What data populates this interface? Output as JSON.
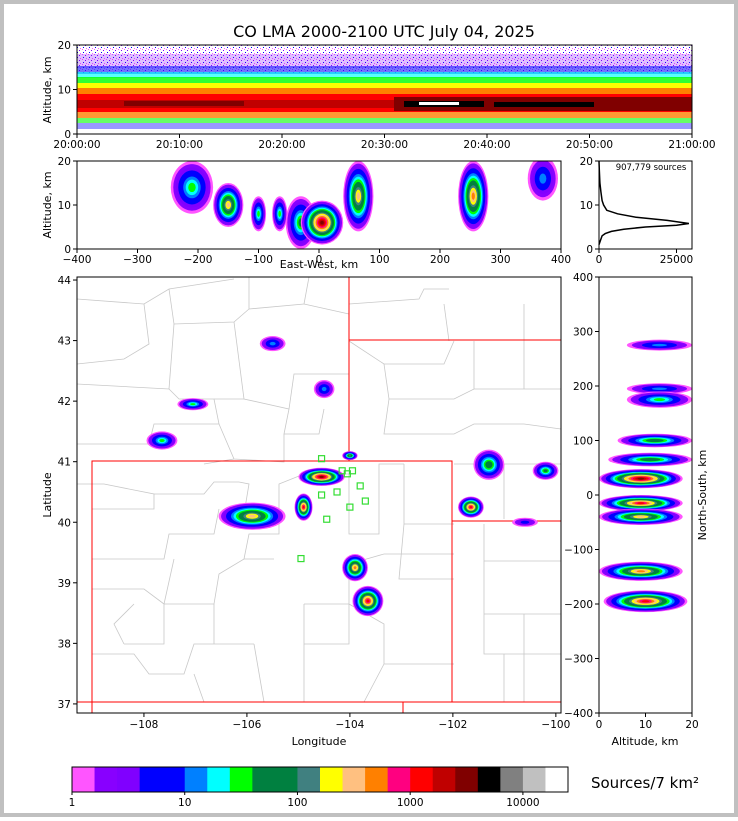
{
  "title": "CO LMA 2000-2100 UTC July 04, 2025",
  "colors": {
    "border": "#c0c0c0",
    "state_line": "#ff0000",
    "county_line": "#c8c8c8",
    "station": "#33dd33"
  },
  "chart_data": [
    {
      "id": "alt_time",
      "type": "heatmap",
      "ylabel": "Altitude, km",
      "xlim": [
        "20:00:00",
        "21:00:00"
      ],
      "ylim": [
        0,
        20
      ],
      "x_ticks": [
        "20:00:00",
        "20:10:00",
        "20:20:00",
        "20:30:00",
        "20:40:00",
        "20:50:00",
        "21:00:00"
      ],
      "y_ticks": [
        "0",
        "10",
        "20"
      ],
      "dense_band_km": [
        3,
        9
      ],
      "peak_altitude_km": 6
    },
    {
      "id": "alt_ew",
      "type": "heatmap",
      "xlabel": "East-West, km",
      "ylabel": "Altitude, km",
      "xlim": [
        -400,
        400
      ],
      "ylim": [
        0,
        20
      ],
      "x_ticks": [
        "−400",
        "−300",
        "−200",
        "−100",
        "0",
        "100",
        "200",
        "300",
        "400"
      ],
      "y_ticks": [
        "0",
        "10",
        "20"
      ],
      "cells": [
        {
          "x": -210,
          "y": 14,
          "w": 70,
          "h": 12,
          "n": 20
        },
        {
          "x": -150,
          "y": 10,
          "w": 50,
          "h": 10,
          "n": 200
        },
        {
          "x": -100,
          "y": 8,
          "w": 25,
          "h": 8,
          "n": 25
        },
        {
          "x": -65,
          "y": 8,
          "w": 25,
          "h": 8,
          "n": 30
        },
        {
          "x": -30,
          "y": 6,
          "w": 50,
          "h": 12,
          "n": 40
        },
        {
          "x": 5,
          "y": 6,
          "w": 70,
          "h": 10,
          "n": 3000
        },
        {
          "x": 65,
          "y": 12,
          "w": 50,
          "h": 16,
          "n": 300
        },
        {
          "x": 255,
          "y": 12,
          "w": 50,
          "h": 16,
          "n": 500
        },
        {
          "x": 370,
          "y": 16,
          "w": 50,
          "h": 10,
          "n": 10
        }
      ]
    },
    {
      "id": "alt_hist",
      "type": "line",
      "annotation": "907,779 sources",
      "xlim": [
        0,
        30000
      ],
      "ylim": [
        0,
        20
      ],
      "x_ticks": [
        "0",
        "25000"
      ],
      "y_ticks": [
        "0",
        "10",
        "20"
      ],
      "x": [
        0,
        500,
        1000,
        2000,
        4000,
        8000,
        15000,
        25000,
        29000,
        22000,
        12000,
        6000,
        2500,
        1500,
        1000,
        600,
        300,
        100,
        0
      ],
      "y": [
        1,
        2,
        3,
        3.5,
        4,
        4.5,
        5,
        5.4,
        5.8,
        6.5,
        7.2,
        8,
        8.8,
        10,
        11,
        13,
        15,
        18,
        20
      ]
    },
    {
      "id": "map",
      "type": "heatmap",
      "xlabel": "Longitude",
      "ylabel": "Latitude",
      "xlim": [
        -109.3,
        -99.9
      ],
      "ylim": [
        36.85,
        44.05
      ],
      "x_ticks": [
        "−108",
        "−106",
        "−104",
        "−102",
        "−100"
      ],
      "y_ticks": [
        "37",
        "38",
        "39",
        "40",
        "41",
        "42",
        "43",
        "44"
      ],
      "cells": [
        {
          "x": -105.9,
          "y": 40.1,
          "w": 1.3,
          "h": 0.45,
          "n": 300
        },
        {
          "x": -104.55,
          "y": 40.75,
          "w": 0.9,
          "h": 0.3,
          "n": 3000
        },
        {
          "x": -104.9,
          "y": 40.25,
          "w": 0.35,
          "h": 0.45,
          "n": 1000
        },
        {
          "x": -103.9,
          "y": 39.25,
          "w": 0.5,
          "h": 0.45,
          "n": 500
        },
        {
          "x": -103.65,
          "y": 38.7,
          "w": 0.6,
          "h": 0.5,
          "n": 1000
        },
        {
          "x": -107.05,
          "y": 41.95,
          "w": 0.6,
          "h": 0.2,
          "n": 30
        },
        {
          "x": -107.65,
          "y": 41.35,
          "w": 0.6,
          "h": 0.3,
          "n": 20
        },
        {
          "x": -105.5,
          "y": 42.95,
          "w": 0.5,
          "h": 0.25,
          "n": 8
        },
        {
          "x": -104.5,
          "y": 42.2,
          "w": 0.4,
          "h": 0.3,
          "n": 12
        },
        {
          "x": -101.3,
          "y": 40.95,
          "w": 0.6,
          "h": 0.5,
          "n": 60
        },
        {
          "x": -101.65,
          "y": 40.25,
          "w": 0.5,
          "h": 0.35,
          "n": 800
        },
        {
          "x": -100.2,
          "y": 40.85,
          "w": 0.5,
          "h": 0.3,
          "n": 50
        },
        {
          "x": -100.6,
          "y": 40.0,
          "w": 0.5,
          "h": 0.15,
          "n": 5
        },
        {
          "x": -104.0,
          "y": 41.1,
          "w": 0.3,
          "h": 0.15,
          "n": 100
        }
      ]
    },
    {
      "id": "ns_alt",
      "type": "heatmap",
      "xlabel": "Altitude, km",
      "ylabel": "North-South, km",
      "xlim": [
        0,
        20
      ],
      "ylim": [
        -400,
        400
      ],
      "x_ticks": [
        "0",
        "10",
        "20"
      ],
      "y_ticks": [
        "400",
        "300",
        "200",
        "100",
        "0",
        "−100",
        "−200",
        "−300",
        "−400"
      ],
      "cells": [
        {
          "x": 13,
          "y": 275,
          "w": 14,
          "h": 20,
          "n": 8
        },
        {
          "x": 13,
          "y": 195,
          "w": 14,
          "h": 20,
          "n": 12
        },
        {
          "x": 13,
          "y": 175,
          "w": 14,
          "h": 30,
          "n": 20
        },
        {
          "x": 12,
          "y": 100,
          "w": 16,
          "h": 25,
          "n": 60
        },
        {
          "x": 11,
          "y": 65,
          "w": 18,
          "h": 25,
          "n": 60
        },
        {
          "x": 9,
          "y": 30,
          "w": 18,
          "h": 35,
          "n": 3000
        },
        {
          "x": 9,
          "y": -15,
          "w": 18,
          "h": 30,
          "n": 1000
        },
        {
          "x": 9,
          "y": -40,
          "w": 18,
          "h": 30,
          "n": 300
        },
        {
          "x": 9,
          "y": -140,
          "w": 18,
          "h": 35,
          "n": 500
        },
        {
          "x": 10,
          "y": -195,
          "w": 18,
          "h": 40,
          "n": 1000
        }
      ]
    }
  ],
  "colorbar": {
    "label": "Sources/7 km²",
    "tick_labels": [
      "1",
      "10",
      "100",
      "1000",
      "10000"
    ],
    "colors": [
      "#ff55ff",
      "#8800ff",
      "#8000ff",
      "#0000ff",
      "#0000ff",
      "#0080ff",
      "#00ffff",
      "#00ff00",
      "#008040",
      "#008040",
      "#408080",
      "#ffff00",
      "#ffc080",
      "#ff8000",
      "#ff0080",
      "#ff0000",
      "#c00000",
      "#800000",
      "#000000",
      "#808080",
      "#c0c0c0",
      "#ffffff"
    ]
  },
  "station_marks": [
    {
      "lon": -104.55,
      "lat": 41.05
    },
    {
      "lon": -104.15,
      "lat": 40.85
    },
    {
      "lon": -103.95,
      "lat": 40.85
    },
    {
      "lon": -104.05,
      "lat": 40.8
    },
    {
      "lon": -103.8,
      "lat": 40.6
    },
    {
      "lon": -104.55,
      "lat": 40.45
    },
    {
      "lon": -104.25,
      "lat": 40.5
    },
    {
      "lon": -103.7,
      "lat": 40.35
    },
    {
      "lon": -104.0,
      "lat": 40.25
    },
    {
      "lon": -104.45,
      "lat": 40.05
    },
    {
      "lon": -104.95,
      "lat": 39.4
    }
  ]
}
